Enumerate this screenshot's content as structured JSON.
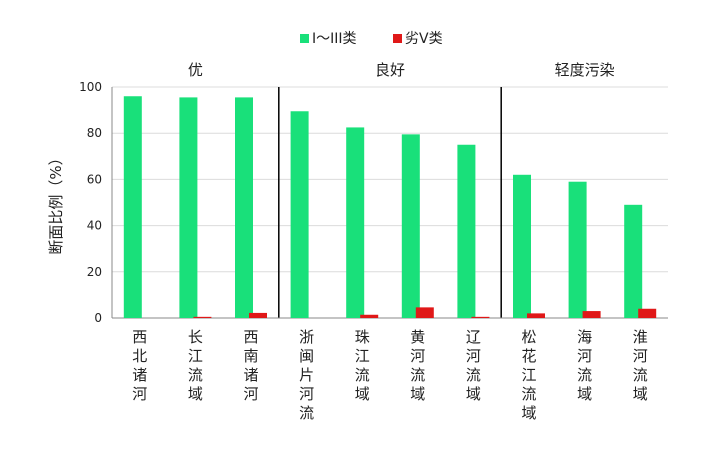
{
  "chart_data": {
    "type": "bar",
    "ylabel": "断面比例（%）",
    "ylim": [
      0,
      100
    ],
    "yticks": [
      0,
      20,
      40,
      60,
      80,
      100
    ],
    "grid": true,
    "legend_position": "top",
    "categories": [
      "西北诸河",
      "长江流域",
      "西南诸河",
      "浙闽片河流",
      "珠江流域",
      "黄河流域",
      "辽河流域",
      "松花江流域",
      "海河流域",
      "淮河流域"
    ],
    "groups": [
      {
        "label": "优",
        "start": 0,
        "end": 2
      },
      {
        "label": "良好",
        "start": 3,
        "end": 6
      },
      {
        "label": "轻度污染",
        "start": 7,
        "end": 9
      }
    ],
    "series": [
      {
        "name": "I～III类",
        "color": "#19e07a",
        "values": [
          96,
          95.5,
          95.5,
          89.5,
          82.5,
          79.5,
          75,
          62,
          59,
          49
        ]
      },
      {
        "name": "劣V类",
        "color": "#e01818",
        "values": [
          0,
          0.5,
          2.2,
          0,
          1.4,
          4.6,
          0.5,
          2,
          3,
          4
        ]
      }
    ]
  }
}
